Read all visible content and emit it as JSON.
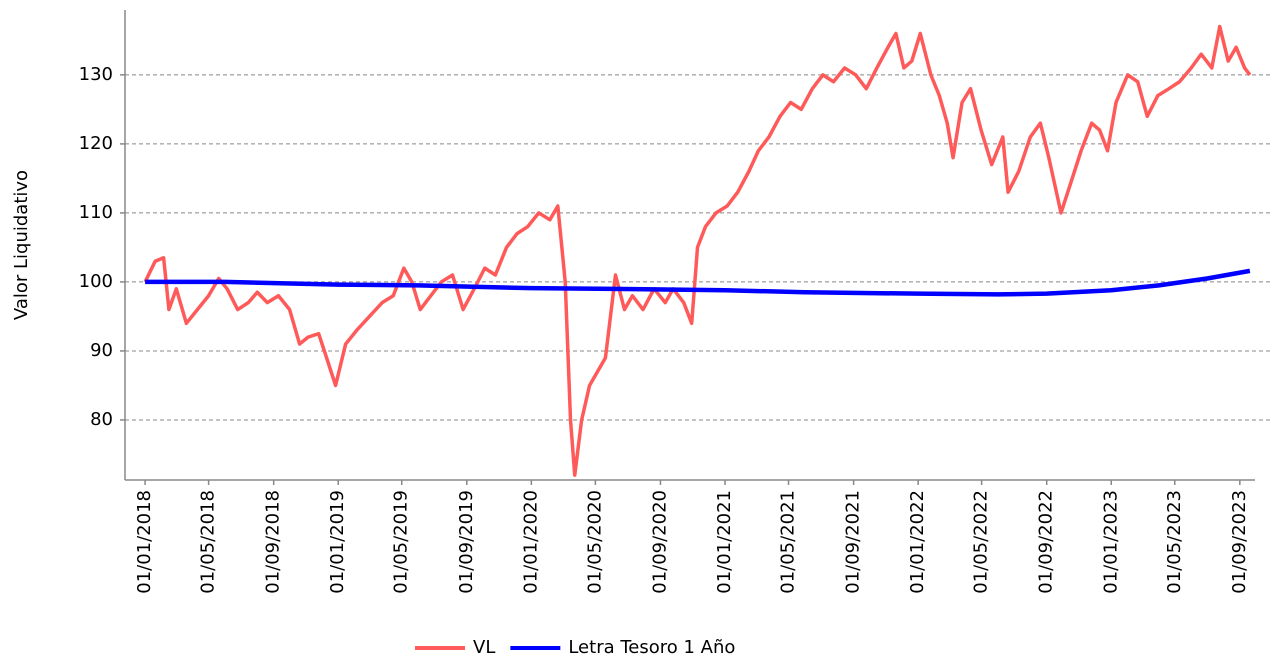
{
  "chart_data": {
    "type": "line",
    "y_label": "Valor Liquidativo",
    "xlim": [
      "2017-11-24",
      "2023-10-28"
    ],
    "ylim": [
      71.3,
      139.4
    ],
    "yticks": [
      80,
      90,
      100,
      110,
      120,
      130
    ],
    "xticks": [
      {
        "value": "2018-01-01",
        "label": "01/01/2018"
      },
      {
        "value": "2018-05-01",
        "label": "01/05/2018"
      },
      {
        "value": "2018-09-01",
        "label": "01/09/2018"
      },
      {
        "value": "2019-01-01",
        "label": "01/01/2019"
      },
      {
        "value": "2019-05-01",
        "label": "01/05/2019"
      },
      {
        "value": "2019-09-01",
        "label": "01/09/2019"
      },
      {
        "value": "2020-01-01",
        "label": "01/01/2020"
      },
      {
        "value": "2020-05-01",
        "label": "01/05/2020"
      },
      {
        "value": "2020-09-01",
        "label": "01/09/2020"
      },
      {
        "value": "2021-01-01",
        "label": "01/01/2021"
      },
      {
        "value": "2021-05-01",
        "label": "01/05/2021"
      },
      {
        "value": "2021-09-01",
        "label": "01/09/2021"
      },
      {
        "value": "2022-01-01",
        "label": "01/01/2022"
      },
      {
        "value": "2022-05-01",
        "label": "01/05/2022"
      },
      {
        "value": "2022-09-01",
        "label": "01/09/2022"
      },
      {
        "value": "2023-01-01",
        "label": "01/01/2023"
      },
      {
        "value": "2023-05-01",
        "label": "01/05/2023"
      },
      {
        "value": "2023-09-01",
        "label": "01/09/2023"
      }
    ],
    "grid": true,
    "legend": "bottom",
    "series": [
      {
        "name": "VL",
        "color": "#ff5a5a",
        "x": [
          "2018-01-01",
          "2018-01-20",
          "2018-02-05",
          "2018-02-15",
          "2018-03-01",
          "2018-03-20",
          "2018-04-10",
          "2018-05-01",
          "2018-05-20",
          "2018-06-05",
          "2018-06-25",
          "2018-07-15",
          "2018-08-01",
          "2018-08-20",
          "2018-09-10",
          "2018-10-01",
          "2018-10-20",
          "2018-11-05",
          "2018-11-25",
          "2018-12-10",
          "2018-12-27",
          "2019-01-15",
          "2019-02-05",
          "2019-03-01",
          "2019-03-25",
          "2019-04-15",
          "2019-05-05",
          "2019-05-20",
          "2019-06-05",
          "2019-06-25",
          "2019-07-15",
          "2019-08-05",
          "2019-08-25",
          "2019-09-15",
          "2019-10-05",
          "2019-10-25",
          "2019-11-15",
          "2019-12-05",
          "2019-12-25",
          "2020-01-15",
          "2020-02-05",
          "2020-02-20",
          "2020-03-05",
          "2020-03-15",
          "2020-03-23",
          "2020-04-05",
          "2020-04-20",
          "2020-05-05",
          "2020-05-20",
          "2020-06-08",
          "2020-06-25",
          "2020-07-10",
          "2020-07-30",
          "2020-08-20",
          "2020-09-10",
          "2020-09-25",
          "2020-10-15",
          "2020-10-30",
          "2020-11-10",
          "2020-11-25",
          "2020-12-15",
          "2021-01-05",
          "2021-01-25",
          "2021-02-15",
          "2021-03-05",
          "2021-03-25",
          "2021-04-15",
          "2021-05-05",
          "2021-05-25",
          "2021-06-15",
          "2021-07-05",
          "2021-07-25",
          "2021-08-15",
          "2021-09-05",
          "2021-09-25",
          "2021-10-15",
          "2021-11-05",
          "2021-11-20",
          "2021-12-05",
          "2021-12-20",
          "2022-01-05",
          "2022-01-25",
          "2022-02-10",
          "2022-02-25",
          "2022-03-08",
          "2022-03-25",
          "2022-04-10",
          "2022-04-30",
          "2022-05-20",
          "2022-06-10",
          "2022-06-20",
          "2022-07-10",
          "2022-08-01",
          "2022-08-20",
          "2022-09-05",
          "2022-09-28",
          "2022-10-15",
          "2022-11-05",
          "2022-11-25",
          "2022-12-10",
          "2022-12-25",
          "2023-01-10",
          "2023-02-01",
          "2023-02-20",
          "2023-03-10",
          "2023-03-30",
          "2023-04-20",
          "2023-05-10",
          "2023-06-01",
          "2023-06-20",
          "2023-07-10",
          "2023-07-25",
          "2023-08-10",
          "2023-08-25",
          "2023-09-10",
          "2023-09-20"
        ],
        "values": [
          100,
          103,
          103.5,
          96,
          99,
          94,
          96,
          98,
          100.5,
          99,
          96,
          97,
          98.5,
          97,
          98,
          96,
          91,
          92,
          92.5,
          89,
          85,
          91,
          93,
          95,
          97,
          98,
          102,
          100,
          96,
          98,
          100,
          101,
          96,
          99,
          102,
          101,
          105,
          107,
          108,
          110,
          109,
          111,
          100,
          80,
          72,
          80,
          85,
          87,
          89,
          101,
          96,
          98,
          96,
          99,
          97,
          99,
          97,
          94,
          105,
          108,
          110,
          111,
          113,
          116,
          119,
          121,
          124,
          126,
          125,
          128,
          130,
          129,
          131,
          130,
          128,
          131,
          134,
          136,
          131,
          132,
          136,
          130,
          127,
          123,
          118,
          126,
          128,
          122,
          117,
          121,
          113,
          116,
          121,
          123,
          118,
          110,
          114,
          119,
          123,
          122,
          119,
          126,
          130,
          129,
          124,
          127,
          128,
          129,
          131,
          133,
          131,
          137,
          132,
          134,
          131,
          130
        ]
      },
      {
        "name": "Letra Tesoro 1 Año",
        "color": "#0000ff",
        "x": [
          "2018-01-01",
          "2018-06-01",
          "2019-01-01",
          "2019-06-01",
          "2020-01-01",
          "2020-06-01",
          "2021-01-01",
          "2021-06-01",
          "2022-01-01",
          "2022-06-01",
          "2022-09-01",
          "2023-01-01",
          "2023-04-01",
          "2023-07-01",
          "2023-09-20"
        ],
        "values": [
          100,
          100,
          99.6,
          99.5,
          99.1,
          99,
          98.8,
          98.5,
          98.3,
          98.2,
          98.3,
          98.8,
          99.5,
          100.5,
          101.6
        ]
      }
    ]
  }
}
